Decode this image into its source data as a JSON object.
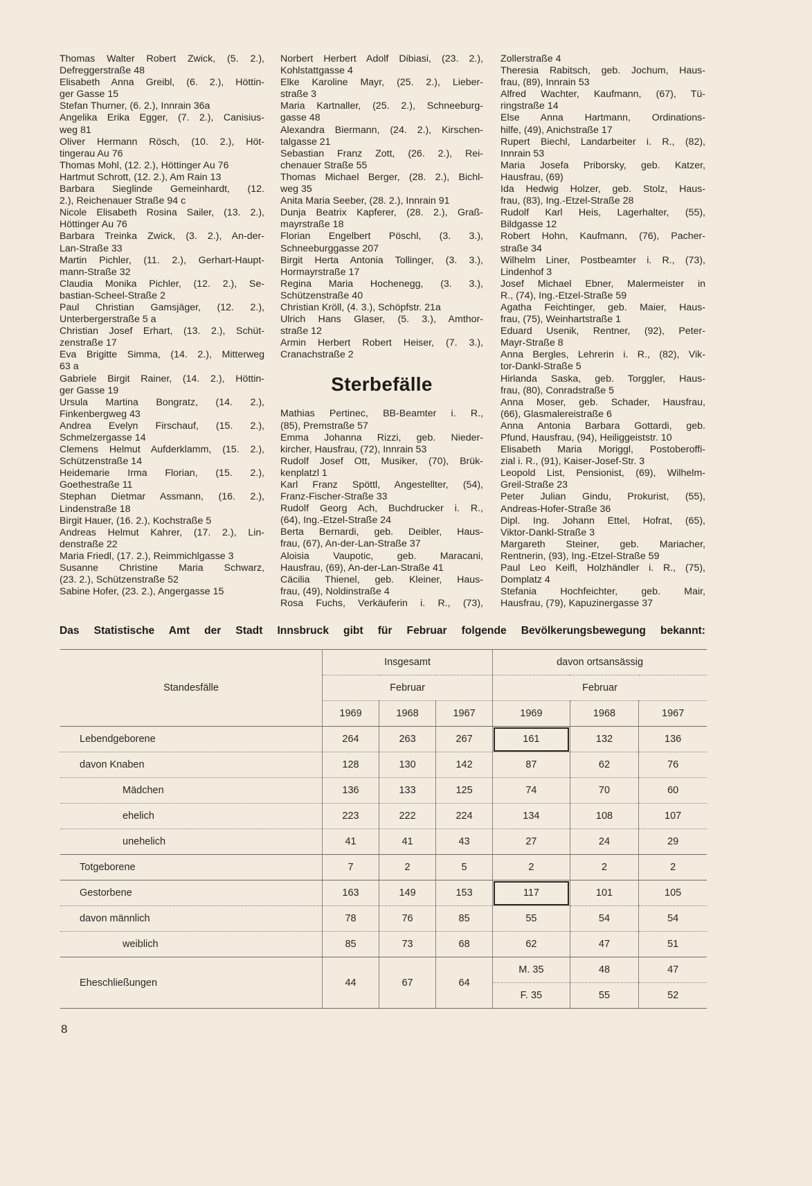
{
  "columns": [
    [
      [
        "Thomas Walter Robert Zwick, (5. 2.),",
        "Defreggerstraße 48"
      ],
      [
        "Elisabeth Anna Greibl, (6. 2.), Höttin-",
        "ger Gasse 15"
      ],
      [
        "Stefan Thurner, (6. 2.), Innrain 36a"
      ],
      [
        "Angelika Erika Egger, (7. 2.), Canisius-",
        "weg 81"
      ],
      [
        "Oliver Hermann Rösch, (10. 2.), Höt-",
        "tingerau Au 76"
      ],
      [
        "Thomas Mohl, (12. 2.), Höttinger Au 76"
      ],
      [
        "Hartmut Schrott, (12. 2.), Am Rain 13"
      ],
      [
        "Barbara Sieglinde Gemeinhardt, (12.",
        "2.), Reichenauer Straße 94 c"
      ],
      [
        "Nicole Elisabeth Rosina Sailer, (13. 2.),",
        "Höttinger Au 76"
      ],
      [
        "Barbara Treinka Zwick, (3. 2.), An-der-",
        "Lan-Straße 33"
      ],
      [
        "Martin Pichler, (11. 2.), Gerhart-Haupt-",
        "mann-Straße 32"
      ],
      [
        "Claudia Monika Pichler, (12. 2.), Se-",
        "bastian-Scheel-Straße 2"
      ],
      [
        "Paul Christian Gamsjäger, (12. 2.),",
        "Unterbergerstraße 5 a"
      ],
      [
        "Christian Josef Erhart, (13. 2.), Schüt-",
        "zenstraße 17"
      ],
      [
        "Eva Brigitte Simma, (14. 2.), Mitterweg",
        "63 a"
      ],
      [
        "Gabriele Birgit Rainer, (14. 2.), Höttin-",
        "ger Gasse 19"
      ],
      [
        "Ursula Martina Bongratz, (14. 2.),",
        "Finkenbergweg 43"
      ],
      [
        "Andrea Evelyn Firschauf, (15. 2.),",
        "Schmelzergasse 14"
      ],
      [
        "Clemens Helmut Aufderklamm, (15. 2.),",
        "Schützenstraße 14"
      ],
      [
        "Heidemarie Irma Florian, (15. 2.),",
        "Goethestraße 11"
      ],
      [
        "Stephan Dietmar Assmann, (16. 2.),",
        "Lindenstraße 18"
      ],
      [
        "Birgit Hauer, (16. 2.), Kochstraße 5"
      ],
      [
        "Andreas Helmut Kahrer, (17. 2.), Lin-",
        "denstraße 22"
      ],
      [
        "Maria Friedl, (17. 2.), Reimmichlgasse 3"
      ],
      [
        "Susanne Christine Maria Schwarz,",
        "(23. 2.), Schützenstraße 52"
      ],
      [
        "Sabine Hofer, (23. 2.), Angergasse 15"
      ]
    ],
    [
      [
        "Norbert Herbert Adolf Dibiasi, (23. 2.),",
        "Kohlstattgasse 4"
      ],
      [
        "Elke Karoline Mayr, (25. 2.), Lieber-",
        "straße 3"
      ],
      [
        "Maria Kartnaller, (25. 2.), Schneeburg-",
        "gasse 48"
      ],
      [
        "Alexandra Biermann, (24. 2.), Kirschen-",
        "talgasse 21"
      ],
      [
        "Sebastian Franz Zott, (26. 2.), Rei-",
        "chenauer Straße 55"
      ],
      [
        "Thomas Michael Berger, (28. 2.), Bichl-",
        "weg 35"
      ],
      [
        "Anita Maria Seeber, (28. 2.), Innrain 91"
      ],
      [
        "Dunja Beatrix Kapferer, (28. 2.), Graß-",
        "mayrstraße 18"
      ],
      [
        "Florian Engelbert Pöschl, (3. 3.),",
        "Schneeburggasse 207"
      ],
      [
        "Birgit Herta Antonia Tollinger, (3. 3.),",
        "Hormayrstraße 17"
      ],
      [
        "Regina Maria Hochenegg, (3. 3.),",
        "Schützenstraße 40"
      ],
      [
        "Christian Kröll, (4. 3.), Schöpfstr. 21a"
      ],
      [
        "Ulrich Hans Glaser, (5. 3.), Amthor-",
        "straße 12"
      ],
      [
        "Armin Herbert Robert Heiser, (7. 3.),",
        "Cranachstraße 2"
      ]
    ],
    [
      [
        "Mathias Pertinec, BB-Beamter i. R.,",
        "(85), Premstraße 57"
      ],
      [
        "Emma Johanna Rizzi, geb. Nieder-",
        "kircher, Hausfrau, (72), Innrain 53"
      ],
      [
        "Rudolf Josef Ott, Musiker, (70), Brük-",
        "kenplatzl 1"
      ],
      [
        "Karl Franz Spöttl, Angestellter, (54),",
        "Franz-Fischer-Straße 33"
      ],
      [
        "Rudolf Georg Ach, Buchdrucker i. R.,",
        "(64), Ing.-Etzel-Straße 24"
      ],
      [
        "Berta Bernardi, geb. Deibler, Haus-",
        "frau, (67), An-der-Lan-Straße 37"
      ],
      [
        "Aloisia Vaupotic, geb. Maracani,",
        "Hausfrau, (69), An-der-Lan-Straße 41"
      ],
      [
        "Cäcilia Thienel, geb. Kleiner, Haus-",
        "frau, (49), Noldinstraße 4"
      ],
      [
        "Rosa Fuchs, Verkäuferin i. R., (73),"
      ]
    ],
    [
      [
        "Zollerstraße 4"
      ],
      [
        "Theresia Rabitsch, geb. Jochum, Haus-",
        "frau, (89), Innrain 53"
      ],
      [
        "Alfred Wachter, Kaufmann, (67), Tü-",
        "ringstraße 14"
      ],
      [
        "Else Anna Hartmann, Ordinations-",
        "hilfe, (49), Anichstraße 17"
      ],
      [
        "Rupert Biechl, Landarbeiter i. R., (82),",
        "Innrain 53"
      ],
      [
        "Maria Josefa Priborsky, geb. Katzer,",
        "Hausfrau, (69)"
      ],
      [
        "Ida Hedwig Holzer, geb. Stolz, Haus-",
        "frau, (83), Ing.-Etzel-Straße 28"
      ],
      [
        "Rudolf Karl Heis, Lagerhalter, (55),",
        "Bildgasse 12"
      ],
      [
        "Robert Hohn, Kaufmann, (76), Pacher-",
        "straße 34"
      ],
      [
        "Wilhelm Liner, Postbeamter i. R., (73),",
        "Lindenhof 3"
      ],
      [
        "Josef Michael Ebner, Malermeister in",
        "R., (74), Ing.-Etzel-Straße 59"
      ],
      [
        "Agatha Feichtinger, geb. Maier, Haus-",
        "frau, (75), Weinhartstraße 1"
      ],
      [
        "Eduard Usenik, Rentner, (92), Peter-",
        "Mayr-Straße 8"
      ],
      [
        "Anna Bergles, Lehrerin i. R., (82), Vik-",
        "tor-Dankl-Straße 5"
      ],
      [
        "Hirlanda Saska, geb. Torggler, Haus-",
        "frau, (80), Conradstraße 5"
      ],
      [
        "Anna Moser, geb. Schader, Hausfrau,",
        "(66), Glasmalereistraße 6"
      ],
      [
        "Anna Antonia Barbara Gottardi, geb.",
        "Pfund, Hausfrau, (94), Heiliggeiststr. 10"
      ],
      [
        "Elisabeth Maria Moriggl, Postoberoffi-",
        "zial i. R., (91), Kaiser-Josef-Str. 3"
      ],
      [
        "Leopold List, Pensionist, (69), Wilhelm-",
        "Greil-Straße 23"
      ],
      [
        "Peter Julian Gindu, Prokurist, (55),",
        "Andreas-Hofer-Straße 36"
      ],
      [
        "Dipl. Ing. Johann Ettel, Hofrat, (65),",
        "Viktor-Dankl-Straße 3"
      ],
      [
        "Margareth Steiner, geb. Mariacher,",
        "Rentnerin, (93), Ing.-Etzel-Straße 59"
      ],
      [
        "Paul Leo Keifl, Holzhändler i. R., (75),",
        "Domplatz 4"
      ],
      [
        "Stefania Hochfeichter, geb. Mair,",
        "Hausfrau, (79), Kapuzinergasse 37"
      ]
    ]
  ],
  "section_heading": "Sterbefälle",
  "table": {
    "title": "Das Statistische Amt der Stadt Innsbruck gibt für Februar folgende Bevölkerungsbewegung bekannt:",
    "row_header": "Standesfälle",
    "group1": "Insgesamt",
    "group2": "davon ortsansässig",
    "month": "Februar",
    "years": [
      "1969",
      "1968",
      "1967"
    ],
    "rows": [
      {
        "label": "Lebendgeborene",
        "values": [
          "264",
          "263",
          "267",
          "161",
          "132",
          "136"
        ]
      },
      {
        "label": "davon Knaben",
        "values": [
          "128",
          "130",
          "142",
          "87",
          "62",
          "76"
        ]
      },
      {
        "label": "Mädchen",
        "values": [
          "136",
          "133",
          "125",
          "74",
          "70",
          "60"
        ]
      },
      {
        "label": "ehelich",
        "values": [
          "223",
          "222",
          "224",
          "134",
          "108",
          "107"
        ]
      },
      {
        "label": "unehelich",
        "values": [
          "41",
          "41",
          "43",
          "27",
          "24",
          "29"
        ]
      },
      {
        "label": "Totgeborene",
        "values": [
          "7",
          "2",
          "5",
          "2",
          "2",
          "2"
        ]
      },
      {
        "label": "Gestorbene",
        "values": [
          "163",
          "149",
          "153",
          "117",
          "101",
          "105"
        ]
      },
      {
        "label": "davon männlich",
        "values": [
          "78",
          "76",
          "85",
          "55",
          "54",
          "54"
        ]
      },
      {
        "label": "weiblich",
        "values": [
          "85",
          "73",
          "68",
          "62",
          "47",
          "51"
        ]
      }
    ],
    "marriages": {
      "label": "Eheschließungen",
      "values": [
        "44",
        "67",
        "64"
      ],
      "male": [
        "M. 35",
        "48",
        "47"
      ],
      "female": [
        "F. 35",
        "55",
        "52"
      ]
    }
  },
  "page_number": "8"
}
